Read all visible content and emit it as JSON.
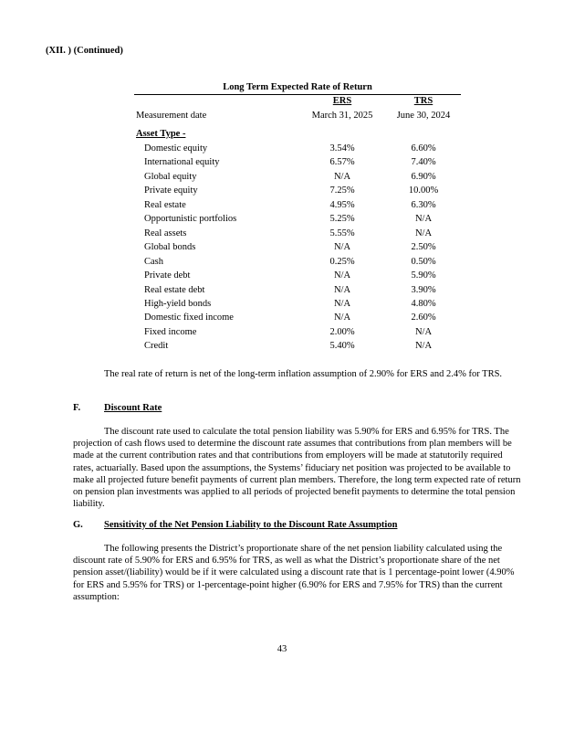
{
  "header": {
    "section": "(XII. ) (Continued)"
  },
  "table": {
    "title": "Long Term Expected Rate of Return",
    "columns": [
      "ERS",
      "TRS"
    ],
    "measurement_date": {
      "label": "Measurement date",
      "values": [
        "March 31, 2025",
        "June 30, 2024"
      ]
    },
    "group_label": "Asset Type -",
    "rows": [
      [
        "Domestic equity",
        "3.54%",
        "6.60%"
      ],
      [
        "International equity",
        "6.57%",
        "7.40%"
      ],
      [
        "Global equity",
        "N/A",
        "6.90%"
      ],
      [
        "Private equity",
        "7.25%",
        "10.00%"
      ],
      [
        "Real estate",
        "4.95%",
        "6.30%"
      ],
      [
        "Opportunistic portfolios",
        "5.25%",
        "N/A"
      ],
      [
        "Real assets",
        "5.55%",
        "N/A"
      ],
      [
        "Global bonds",
        "N/A",
        "2.50%"
      ],
      [
        "Cash",
        "0.25%",
        "0.50%"
      ],
      [
        "Private debt",
        "N/A",
        "5.90%"
      ],
      [
        "Real estate debt",
        "N/A",
        "3.90%"
      ],
      [
        "High-yield bonds",
        "N/A",
        "4.80%"
      ],
      [
        "Domestic fixed income",
        "N/A",
        "2.60%"
      ],
      [
        "Fixed income",
        "2.00%",
        "N/A"
      ],
      [
        "Credit",
        "5.40%",
        "N/A"
      ]
    ]
  },
  "note": "The real rate of return is net of the long-term inflation assumption of 2.90% for ERS and 2.4% for TRS.",
  "sections": [
    {
      "letter": "F.",
      "title": "Discount Rate",
      "paragraph": "The discount rate used to calculate the total pension liability was 5.90% for ERS and 6.95% for TRS. The projection of cash flows used to determine the discount rate assumes that contributions from plan members will be made at the current contribution rates and that contributions from employers will be made at statutorily required rates, actuarially. Based upon the assumptions, the Systems’ fiduciary net position was projected to be available to make all projected future benefit payments of current plan members. Therefore, the long term expected rate of return on pension plan investments was applied to all periods of projected benefit payments to determine the total pension liability."
    },
    {
      "letter": "G.",
      "title": "Sensitivity of the Net Pension Liability to the Discount Rate Assumption",
      "paragraph": "The following presents the District’s proportionate share of the net pension liability calculated using the discount rate of 5.90% for ERS and 6.95% for TRS, as well as what the District’s proportionate share of the net pension asset/(liability) would be if it were calculated using a discount rate that is 1 percentage-point lower (4.90% for ERS and 5.95% for TRS) or 1-percentage-point higher (6.90% for ERS and 7.95% for TRS) than the current assumption:"
    }
  ],
  "page_number": "43"
}
